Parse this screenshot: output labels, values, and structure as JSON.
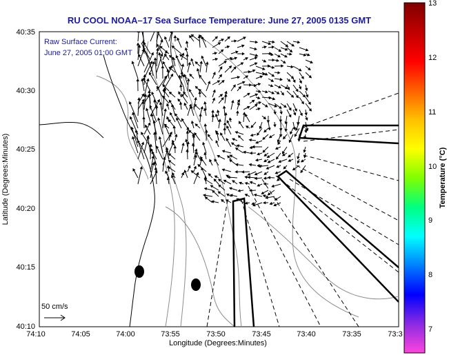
{
  "title": "RU COOL  NOAA–17  Sea Surface Temperature:  June 27, 2005 0135 GMT",
  "annotation": {
    "line1": "Raw Surface Current:",
    "line2": "June 27, 2005 01:00 GMT"
  },
  "axes": {
    "xlabel": "Longitude (Degrees:Minutes)",
    "ylabel": "Latitude (Degrees:Minutes)",
    "xticks": [
      "74:10",
      "74:05",
      "74:00",
      "73:55",
      "73:50",
      "73:45",
      "73:40",
      "73:35",
      "73:3"
    ],
    "yticks": [
      "40:35",
      "40:30",
      "40:25",
      "40:20",
      "40:15",
      "40:10"
    ]
  },
  "scale": {
    "label": "50 cm/s"
  },
  "colorbar": {
    "label": "Temperature (°C)",
    "ticks": [
      "13",
      "12",
      "11",
      "10",
      "9",
      "8",
      "7"
    ],
    "colors": [
      "#ff44dd",
      "#8a2be2",
      "#0000ff",
      "#0080ff",
      "#00ffff",
      "#00ff80",
      "#80ff00",
      "#ffff00",
      "#ffc000",
      "#ff6000",
      "#ff0000",
      "#c00000",
      "#800000"
    ]
  },
  "markers": {
    "count": 2
  }
}
